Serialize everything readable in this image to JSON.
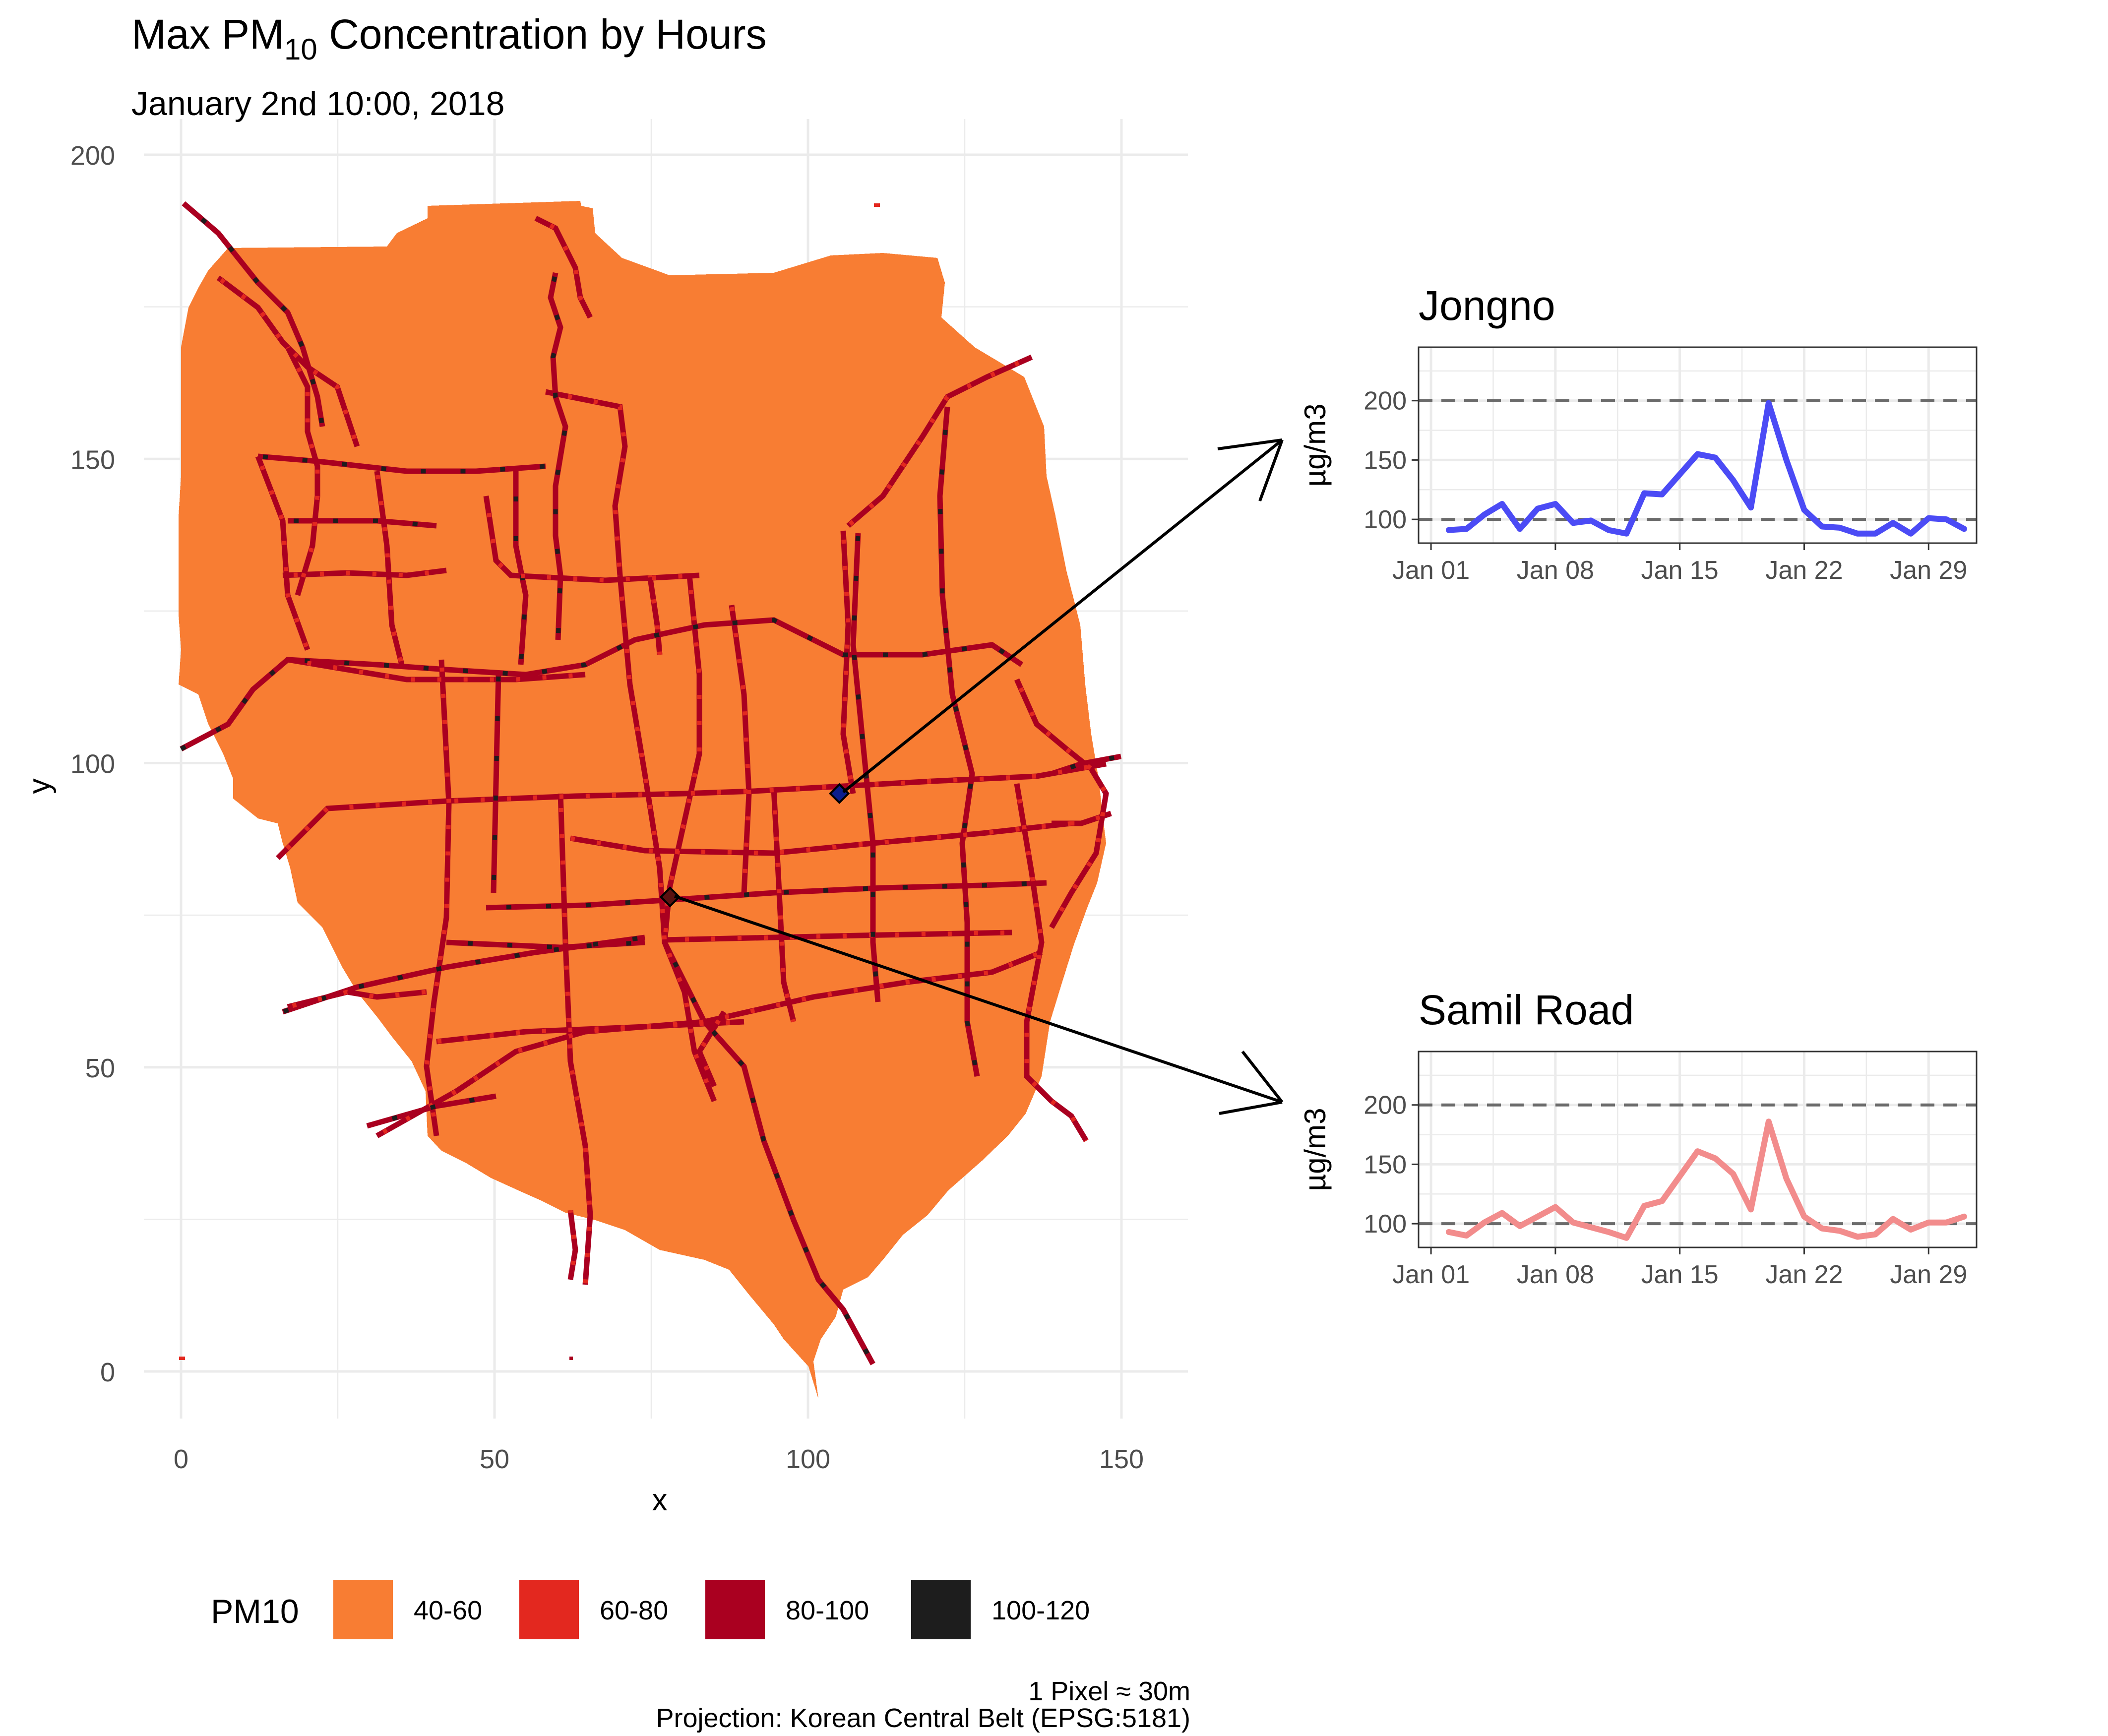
{
  "title": {
    "main": "Max PM",
    "sub": "10",
    "rest": " Concentration by Hours"
  },
  "subtitle": "January 2nd 10:00, 2018",
  "colors": {
    "c40": "#F87D33",
    "c60": "#E3281F",
    "c80": "#AA0020",
    "c100": "#1D1D1D",
    "jongno": "#4B4BF5",
    "samil": "#F28C8C",
    "grid": "#EBEBEB"
  },
  "map": {
    "xlabel": "x",
    "ylabel": "y",
    "xlim": [
      0,
      160
    ],
    "ylim": [
      0,
      200
    ],
    "xticks": [
      "0",
      "50",
      "100",
      "150"
    ],
    "yticks": [
      "0",
      "50",
      "100",
      "150",
      "200"
    ],
    "stations": [
      {
        "name": "Jongno",
        "x": 105,
        "y": 95
      },
      {
        "name": "Samil Road",
        "x": 78,
        "y": 78
      }
    ]
  },
  "legend": {
    "title": "PM10",
    "items": [
      {
        "label": "40-60",
        "color": "#F87D33"
      },
      {
        "label": "60-80",
        "color": "#E3281F"
      },
      {
        "label": "80-100",
        "color": "#AA0020"
      },
      {
        "label": "100-120",
        "color": "#1D1D1D"
      }
    ]
  },
  "caption": {
    "line1": "1 Pixel ≈ 30m",
    "line2": "Projection: Korean Central Belt (EPSG:5181)"
  },
  "chart_data": [
    {
      "type": "heatmap",
      "title": "Max PM10 Concentration by Hours",
      "subtitle": "January 2nd 10:00, 2018",
      "xlabel": "x",
      "ylabel": "y",
      "xlim": [
        0,
        160
      ],
      "ylim": [
        0,
        200
      ],
      "legend_title": "PM10",
      "categories": [
        "40-60",
        "60-80",
        "80-100",
        "100-120"
      ],
      "grid": true,
      "legend_position": "bottom"
    },
    {
      "type": "line",
      "title": "Jongno",
      "ylabel": "µg/m3",
      "x": [
        "Jan 02",
        "Jan 03",
        "Jan 04",
        "Jan 05",
        "Jan 06",
        "Jan 07",
        "Jan 08",
        "Jan 09",
        "Jan 10",
        "Jan 11",
        "Jan 12",
        "Jan 13",
        "Jan 14",
        "Jan 15",
        "Jan 16",
        "Jan 17",
        "Jan 18",
        "Jan 19",
        "Jan 20",
        "Jan 21",
        "Jan 22",
        "Jan 23",
        "Jan 24",
        "Jan 25",
        "Jan 26",
        "Jan 27",
        "Jan 28",
        "Jan 29",
        "Jan 30",
        "Jan 31"
      ],
      "values": [
        91,
        92,
        104,
        113,
        92,
        109,
        113,
        97,
        99,
        91,
        88,
        122,
        121,
        138,
        155,
        152,
        133,
        110,
        198,
        150,
        108,
        94,
        93,
        88,
        88,
        97,
        88,
        101,
        100,
        92
      ],
      "xticks": [
        "Jan 01",
        "Jan 08",
        "Jan 15",
        "Jan 22",
        "Jan 29"
      ],
      "yticks": [
        "100",
        "150",
        "200"
      ],
      "ylim": [
        80,
        245
      ],
      "reference_lines": [
        100,
        200
      ],
      "color": "#4B4BF5"
    },
    {
      "type": "line",
      "title": "Samil Road",
      "ylabel": "µg/m3",
      "x": [
        "Jan 02",
        "Jan 03",
        "Jan 04",
        "Jan 05",
        "Jan 06",
        "Jan 07",
        "Jan 08",
        "Jan 09",
        "Jan 10",
        "Jan 11",
        "Jan 12",
        "Jan 13",
        "Jan 14",
        "Jan 15",
        "Jan 16",
        "Jan 17",
        "Jan 18",
        "Jan 19",
        "Jan 20",
        "Jan 21",
        "Jan 22",
        "Jan 23",
        "Jan 24",
        "Jan 25",
        "Jan 26",
        "Jan 27",
        "Jan 28",
        "Jan 29",
        "Jan 30",
        "Jan 31"
      ],
      "values": [
        93,
        90,
        101,
        109,
        98,
        106,
        114,
        101,
        97,
        93,
        88,
        115,
        119,
        140,
        161,
        155,
        142,
        112,
        186,
        138,
        106,
        96,
        94,
        89,
        91,
        104,
        95,
        101,
        101,
        106
      ],
      "xticks": [
        "Jan 01",
        "Jan 08",
        "Jan 15",
        "Jan 22",
        "Jan 29"
      ],
      "yticks": [
        "100",
        "150",
        "200"
      ],
      "ylim": [
        80,
        245
      ],
      "reference_lines": [
        100,
        200
      ],
      "color": "#F28C8C"
    }
  ]
}
